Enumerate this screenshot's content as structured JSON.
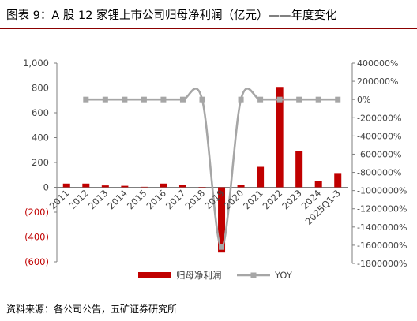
{
  "header": {
    "title": "图表 9：A 股 12 家锂上市公司归母净利润（亿元）——年度变化"
  },
  "footer": {
    "source": "资料来源：各公司公告，五矿证券研究所"
  },
  "chart_data": {
    "type": "bar",
    "categories": [
      "2011",
      "2012",
      "2013",
      "2014",
      "2015",
      "2016",
      "2017",
      "2018",
      "2019",
      "2020",
      "2021",
      "2022",
      "2023",
      "2024",
      "2025Q1-3"
    ],
    "series": [
      {
        "name": "归母净利润",
        "kind": "bar",
        "axis": "left",
        "color": "#c00000",
        "values": [
          30,
          30,
          15,
          12,
          4,
          30,
          22,
          0,
          -525,
          20,
          165,
          808,
          295,
          50,
          115
        ]
      },
      {
        "name": "YOY",
        "kind": "line",
        "axis": "right",
        "color": "#a6a6a6",
        "values": [
          null,
          0,
          0,
          0,
          0,
          0,
          0,
          0,
          -1620000,
          0,
          0,
          0,
          0,
          0,
          0
        ]
      }
    ],
    "y_left": {
      "ylim": [
        -600,
        1000
      ],
      "ticks": [
        1000,
        800,
        600,
        400,
        200,
        0,
        -200,
        -400,
        -600
      ],
      "tick_labels": [
        "1,000",
        "800",
        "600",
        "400",
        "200",
        "0",
        "(200)",
        "(400)",
        "(600)"
      ]
    },
    "y_right": {
      "ylim": [
        -1800000,
        400000
      ],
      "ticks": [
        400000,
        200000,
        0,
        -200000,
        -400000,
        -600000,
        -800000,
        -1000000,
        -1200000,
        -1400000,
        -1600000,
        -1800000
      ],
      "tick_labels": [
        "400000%",
        "200000%",
        "0%",
        "-200000%",
        "-400000%",
        "-600000%",
        "-800000%",
        "-1000000%",
        "-1200000%",
        "-1400000%",
        "-1600000%",
        "-1800000%"
      ]
    },
    "legend": {
      "position": "bottom",
      "entries": [
        "归母净利润",
        "YOY"
      ]
    },
    "grid": false
  }
}
